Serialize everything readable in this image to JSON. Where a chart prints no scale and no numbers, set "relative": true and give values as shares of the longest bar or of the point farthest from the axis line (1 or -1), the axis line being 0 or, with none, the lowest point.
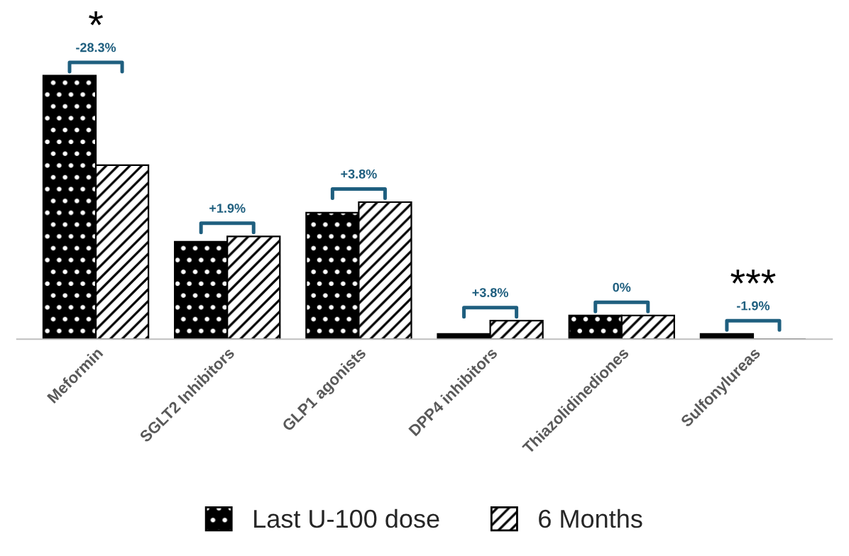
{
  "chart_data": {
    "type": "bar",
    "relative": true,
    "categories": [
      "Meformin",
      "SGLT2 Inhibitors",
      "GLP1 agonists",
      "DPP4 inhibitors",
      "Thiazolidinediones",
      "Sulfonylureas"
    ],
    "series": [
      {
        "name": "Last U-100 dose",
        "color": "#000000",
        "values": [
          1,
          0.37,
          0.48,
          0.02,
          0.09,
          0.02
        ]
      },
      {
        "name": "6 Months",
        "color": "#000000",
        "values": [
          0.66,
          0.39,
          0.52,
          0.07,
          0.09,
          0
        ]
      }
    ],
    "annotations": [
      "*",
      "-28.3%",
      "+1.9%",
      "+3.8%",
      "+3.8%",
      "0%",
      "***",
      "-1.9%"
    ],
    "legend": "bottom",
    "grid": false
  }
}
